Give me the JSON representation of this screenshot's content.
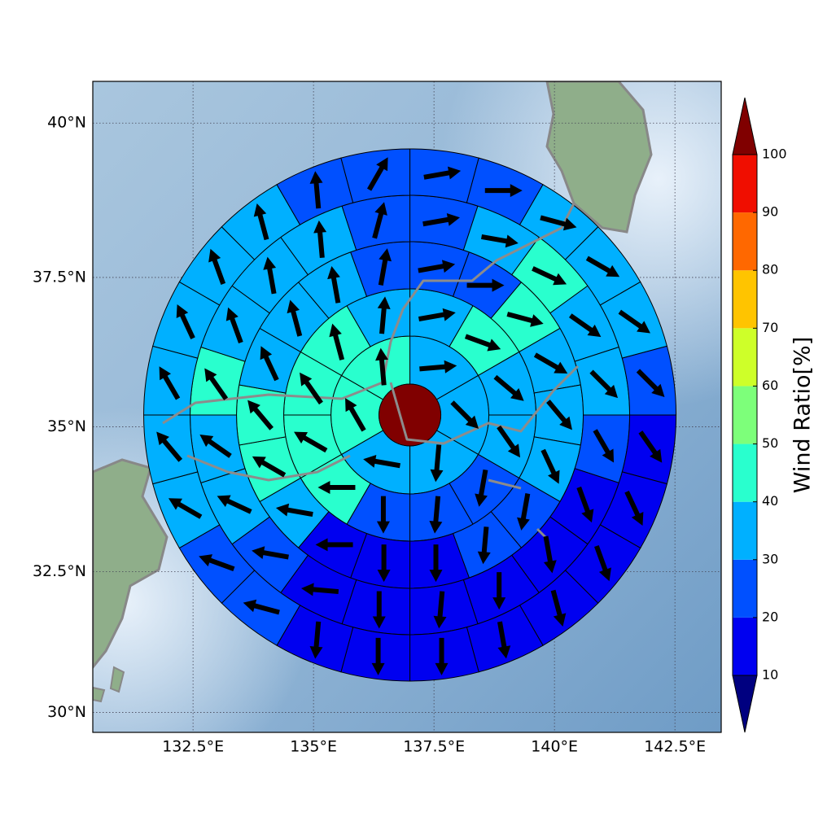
{
  "chart_data": {
    "type": "polar_sector_map",
    "xlim": [
      130.42,
      143.46
    ],
    "ylim": [
      29.64,
      40.66
    ],
    "xticks": [
      {
        "value": 132.5,
        "label": "132.5°E"
      },
      {
        "value": 135,
        "label": "135°E"
      },
      {
        "value": 137.5,
        "label": "137.5°E"
      },
      {
        "value": 140,
        "label": "140°E"
      },
      {
        "value": 142.5,
        "label": "142.5°E"
      }
    ],
    "yticks": [
      {
        "value": 30,
        "label": "30°N"
      },
      {
        "value": 32.5,
        "label": "32.5°N"
      },
      {
        "value": 35,
        "label": "35°N"
      },
      {
        "value": 37.5,
        "label": "37.5°N"
      },
      {
        "value": 40,
        "label": "40°N"
      }
    ],
    "grid": true,
    "center": {
      "lon": 137,
      "lat": 35.2
    },
    "center_value": 105,
    "rings": [
      {
        "values": [
          35,
          35,
          35,
          35,
          45,
          45
        ],
        "directions": [
          5,
          -45,
          -95,
          170,
          120,
          95
        ]
      },
      {
        "values": [
          35,
          45,
          35,
          35,
          25,
          25,
          25,
          45,
          45,
          45,
          45,
          35
        ],
        "directions": [
          10,
          -20,
          -40,
          -55,
          -100,
          -95,
          -90,
          180,
          150,
          125,
          105,
          85
        ]
      },
      {
        "values": [
          25,
          25,
          45,
          35,
          35,
          35,
          25,
          25,
          15,
          15,
          15,
          35,
          45,
          45,
          35,
          35,
          35,
          25
        ],
        "directions": [
          10,
          0,
          -15,
          -30,
          -50,
          -65,
          -100,
          -95,
          -90,
          -90,
          180,
          170,
          150,
          130,
          115,
          105,
          100,
          80
        ]
      },
      {
        "values": [
          25,
          35,
          45,
          35,
          35,
          25,
          15,
          15,
          15,
          15,
          15,
          15,
          25,
          35,
          35,
          45,
          35,
          35,
          35,
          25
        ],
        "directions": [
          10,
          -10,
          -25,
          -35,
          -45,
          -60,
          -70,
          -80,
          -90,
          -95,
          -90,
          175,
          170,
          155,
          145,
          125,
          110,
          100,
          95,
          75
        ]
      },
      {
        "values": [
          25,
          25,
          35,
          35,
          35,
          25,
          15,
          15,
          15,
          15,
          15,
          15,
          15,
          15,
          25,
          25,
          35,
          35,
          35,
          35,
          35,
          35,
          25,
          25
        ],
        "directions": [
          10,
          0,
          -15,
          -30,
          -35,
          -45,
          -55,
          -65,
          -70,
          -75,
          -80,
          -90,
          -90,
          -95,
          165,
          160,
          150,
          130,
          120,
          115,
          110,
          105,
          95,
          60
        ]
      }
    ],
    "colorbar": {
      "label": "Wind Ratio[%]",
      "levels": [
        10,
        20,
        30,
        40,
        50,
        60,
        70,
        80,
        90,
        100
      ],
      "colors": [
        "#0000f0",
        "#0050ff",
        "#00b0ff",
        "#29ffce",
        "#7dff7a",
        "#ceff29",
        "#ffc400",
        "#ff6800",
        "#f00e00"
      ],
      "under_color": "#000080",
      "over_color": "#800000"
    },
    "arrow_color": "#000000"
  }
}
